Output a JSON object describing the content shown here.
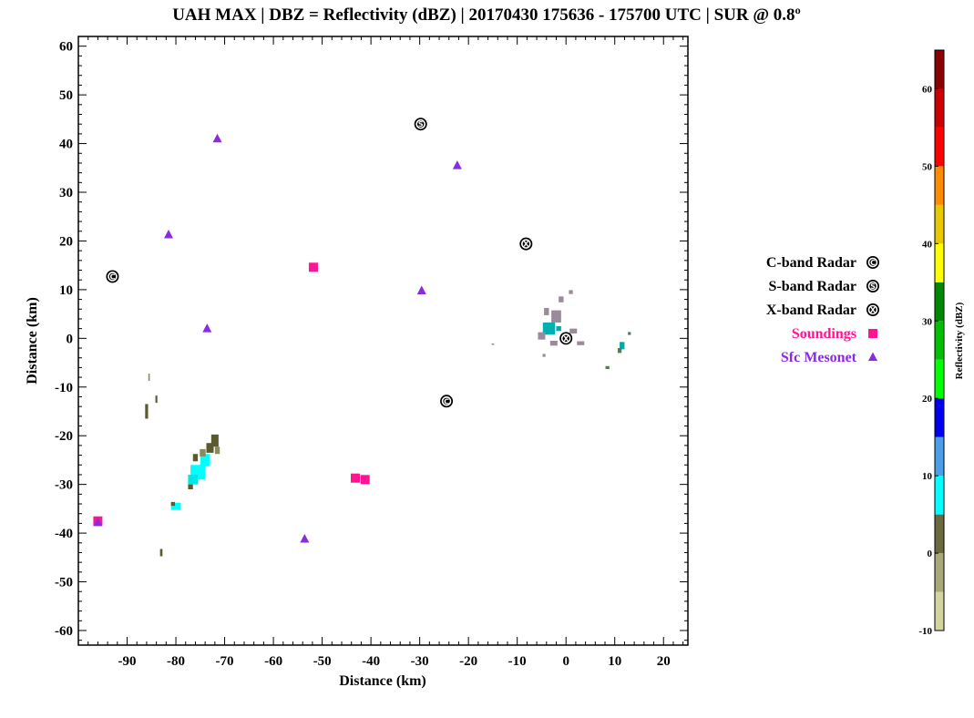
{
  "chart_data": {
    "type": "scatter",
    "title": "UAH MAX | DBZ = Reflectivity (dBZ) | 20170430 175636 - 175700 UTC | SUR @ 0.8º",
    "xlabel": "Distance (km)",
    "ylabel": "Distance (km)",
    "xlim": [
      -100,
      25
    ],
    "ylim": [
      -63,
      62
    ],
    "x_ticks": [
      -90,
      -80,
      -70,
      -60,
      -50,
      -40,
      -30,
      -20,
      -10,
      0,
      10,
      20
    ],
    "y_ticks": [
      60,
      50,
      40,
      30,
      20,
      10,
      0,
      -10,
      -20,
      -30,
      -40,
      -50,
      -60
    ],
    "legend_position": "right",
    "series": [
      {
        "name": "C-band Radar",
        "marker": "circle-letter",
        "letter": "C",
        "color": "#000000",
        "points": [
          {
            "x": -93,
            "y": 12.7
          },
          {
            "x": -24.5,
            "y": -12.9
          }
        ]
      },
      {
        "name": "S-band Radar",
        "marker": "circle-letter",
        "letter": "S",
        "color": "#000000",
        "points": [
          {
            "x": -29.8,
            "y": 44
          }
        ]
      },
      {
        "name": "X-band Radar",
        "marker": "circle-letter",
        "letter": "X",
        "color": "#000000",
        "points": [
          {
            "x": -8.2,
            "y": 19.4
          },
          {
            "x": 0,
            "y": 0
          }
        ]
      },
      {
        "name": "Soundings",
        "marker": "square",
        "color": "#ff1493",
        "points": [
          {
            "x": -51.8,
            "y": 14.6
          },
          {
            "x": -43.2,
            "y": -28.7
          },
          {
            "x": -41.2,
            "y": -29
          },
          {
            "x": -96,
            "y": -37.5
          }
        ]
      },
      {
        "name": "Sfc Mesonet",
        "marker": "triangle",
        "color": "#8a2be2",
        "points": [
          {
            "x": -71.5,
            "y": 41
          },
          {
            "x": -22.3,
            "y": 35.5
          },
          {
            "x": -81.5,
            "y": 21.3
          },
          {
            "x": -29.6,
            "y": 9.8
          },
          {
            "x": -73.6,
            "y": 2
          },
          {
            "x": -53.6,
            "y": -41.2
          },
          {
            "x": -96,
            "y": -37.8
          }
        ]
      }
    ],
    "reflectivity_patches": [
      {
        "x": -75.5,
        "y": -27.5,
        "w": 3.0,
        "h": 3.0,
        "color": "#00ffff"
      },
      {
        "x": -74.0,
        "y": -25.0,
        "w": 2.0,
        "h": 2.5,
        "color": "#00ffff"
      },
      {
        "x": -76.5,
        "y": -29.0,
        "w": 2.0,
        "h": 2.0,
        "color": "#00e5e5"
      },
      {
        "x": -73.0,
        "y": -22.5,
        "w": 1.5,
        "h": 2.0,
        "color": "#5a5a2e"
      },
      {
        "x": -72.0,
        "y": -21.0,
        "w": 1.5,
        "h": 2.5,
        "color": "#5a5a2e"
      },
      {
        "x": -74.5,
        "y": -23.5,
        "w": 1.2,
        "h": 1.5,
        "color": "#8a8a5a"
      },
      {
        "x": -76.0,
        "y": -24.5,
        "w": 1.0,
        "h": 1.5,
        "color": "#5a5a2e"
      },
      {
        "x": -71.5,
        "y": -23.0,
        "w": 1.0,
        "h": 1.5,
        "color": "#8a8a5a"
      },
      {
        "x": -77.0,
        "y": -30.5,
        "w": 1.0,
        "h": 1.0,
        "color": "#5a5a2e"
      },
      {
        "x": -80.0,
        "y": -34.5,
        "w": 2.0,
        "h": 1.5,
        "color": "#00ffff"
      },
      {
        "x": -80.6,
        "y": -34.0,
        "w": 0.8,
        "h": 0.8,
        "color": "#5a5a2e"
      },
      {
        "x": -86.0,
        "y": -15.0,
        "w": 0.6,
        "h": 3.0,
        "color": "#5a5a2e"
      },
      {
        "x": -84.0,
        "y": -12.5,
        "w": 0.4,
        "h": 1.5,
        "color": "#5a5a2e"
      },
      {
        "x": -85.5,
        "y": -8.0,
        "w": 0.3,
        "h": 1.5,
        "color": "#8a8a5a"
      },
      {
        "x": -83.0,
        "y": -44.0,
        "w": 0.5,
        "h": 1.5,
        "color": "#5a5a2e"
      },
      {
        "x": -3.5,
        "y": 2.0,
        "w": 2.5,
        "h": 2.5,
        "color": "#00b0b0"
      },
      {
        "x": -2.0,
        "y": 4.5,
        "w": 2.0,
        "h": 2.5,
        "color": "#9a8a9a"
      },
      {
        "x": -4.0,
        "y": 5.5,
        "w": 1.0,
        "h": 1.5,
        "color": "#9a8a9a"
      },
      {
        "x": -1.0,
        "y": 8.0,
        "w": 1.0,
        "h": 1.2,
        "color": "#9a8a9a"
      },
      {
        "x": -5.0,
        "y": 0.5,
        "w": 1.5,
        "h": 1.5,
        "color": "#9a8a9a"
      },
      {
        "x": -2.5,
        "y": -1.0,
        "w": 1.5,
        "h": 1.0,
        "color": "#9a8a9a"
      },
      {
        "x": 1.5,
        "y": 1.5,
        "w": 1.5,
        "h": 1.0,
        "color": "#9a8a9a"
      },
      {
        "x": 3.0,
        "y": -1.0,
        "w": 1.5,
        "h": 0.8,
        "color": "#9a8a9a"
      },
      {
        "x": 1.0,
        "y": 9.5,
        "w": 0.8,
        "h": 0.8,
        "color": "#9a8a9a"
      },
      {
        "x": -1.5,
        "y": 2.0,
        "w": 1.0,
        "h": 1.0,
        "color": "#00aaaa"
      },
      {
        "x": -4.5,
        "y": -3.5,
        "w": 0.6,
        "h": 0.6,
        "color": "#9a8a9a"
      },
      {
        "x": 11.5,
        "y": -1.5,
        "w": 1.0,
        "h": 1.5,
        "color": "#00aaaa"
      },
      {
        "x": 11.0,
        "y": -2.5,
        "w": 0.8,
        "h": 1.0,
        "color": "#5a7a5a"
      },
      {
        "x": 13.0,
        "y": 1.0,
        "w": 0.6,
        "h": 0.6,
        "color": "#5a7a5a"
      },
      {
        "x": 8.5,
        "y": -6.0,
        "w": 0.8,
        "h": 0.6,
        "color": "#5a7a5a"
      },
      {
        "x": -15.0,
        "y": -1.2,
        "w": 0.5,
        "h": 0.3,
        "color": "#9a8a9a"
      }
    ],
    "colorbar": {
      "label": "Reflectivity (dBZ)",
      "min": -10,
      "max": 65,
      "ticks": [
        -10,
        0,
        10,
        20,
        30,
        40,
        50,
        60
      ],
      "segments": [
        {
          "from": -10,
          "to": -5,
          "color": "#d4d4a0"
        },
        {
          "from": -5,
          "to": 0,
          "color": "#a8a878"
        },
        {
          "from": 0,
          "to": 5,
          "color": "#6a6a3e"
        },
        {
          "from": 5,
          "to": 10,
          "color": "#00ffff"
        },
        {
          "from": 10,
          "to": 15,
          "color": "#4a9fe8"
        },
        {
          "from": 15,
          "to": 20,
          "color": "#0000ee"
        },
        {
          "from": 20,
          "to": 25,
          "color": "#00ff00"
        },
        {
          "from": 25,
          "to": 30,
          "color": "#00c000"
        },
        {
          "from": 30,
          "to": 35,
          "color": "#008800"
        },
        {
          "from": 35,
          "to": 40,
          "color": "#ffff00"
        },
        {
          "from": 40,
          "to": 45,
          "color": "#e8c800"
        },
        {
          "from": 45,
          "to": 50,
          "color": "#ff8c00"
        },
        {
          "from": 50,
          "to": 55,
          "color": "#ff0000"
        },
        {
          "from": 55,
          "to": 60,
          "color": "#cc0000"
        },
        {
          "from": 60,
          "to": 65,
          "color": "#8b0000"
        }
      ]
    }
  }
}
